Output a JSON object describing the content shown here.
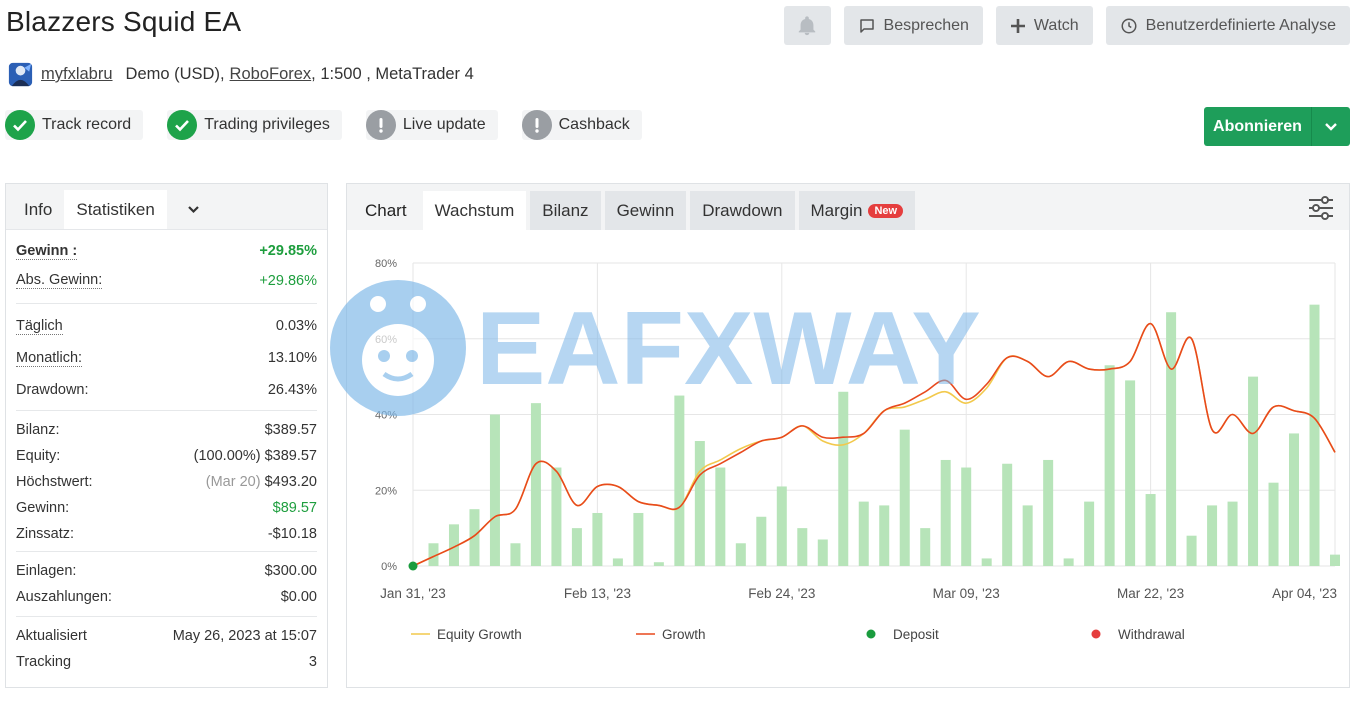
{
  "header": {
    "title": "Blazzers Squid EA",
    "discuss_label": "Besprechen",
    "watch_label": "Watch",
    "custom_analysis_label": "Benutzerdefinierte Analyse"
  },
  "account": {
    "user": "myfxlabru",
    "type": "Demo (USD),",
    "broker": "RoboForex",
    "leverage": ", 1:500 , MetaTrader 4"
  },
  "badges": [
    {
      "label": "Track record",
      "status": "ok"
    },
    {
      "label": "Trading privileges",
      "status": "ok"
    },
    {
      "label": "Live update",
      "status": "warn"
    },
    {
      "label": "Cashback",
      "status": "warn"
    }
  ],
  "subscribe_label": "Abonnieren",
  "left_tabs": {
    "info": "Info",
    "stats": "Statistiken"
  },
  "stats": {
    "gain_label": "Gewinn :",
    "gain_value": "+29.85%",
    "abs_gain_label": "Abs. Gewinn:",
    "abs_gain_value": "+29.86%",
    "daily_label": "Täglich",
    "daily_value": "0.03%",
    "monthly_label": "Monatlich:",
    "monthly_value": "13.10%",
    "drawdown_label": "Drawdown:",
    "drawdown_value": "26.43%",
    "balance_label": "Bilanz:",
    "balance_value": "$389.57",
    "equity_label": "Equity:",
    "equity_pct": "(100.00%)",
    "equity_value": "$389.57",
    "highest_label": "Höchstwert:",
    "highest_date": "(Mar 20)",
    "highest_value": "$493.20",
    "profit_label": "Gewinn:",
    "profit_value": "$89.57",
    "interest_label": "Zinssatz:",
    "interest_value": "-$10.18",
    "deposits_label": "Einlagen:",
    "deposits_value": "$300.00",
    "withdrawals_label": "Auszahlungen:",
    "withdrawals_value": "$0.00",
    "updated_label": "Aktualisiert",
    "updated_value": "May 26, 2023 at 15:07",
    "tracking_label": "Tracking",
    "tracking_value": "3"
  },
  "chart_tabs": {
    "chart": "Chart",
    "growth": "Wachstum",
    "balance": "Bilanz",
    "profit": "Gewinn",
    "drawdown": "Drawdown",
    "margin": "Margin",
    "new": "New"
  },
  "watermark": "EAFXWAY",
  "colors": {
    "equity": "#f2c94c",
    "growth": "#e8491d",
    "deposit": "#1a9c3e",
    "withdrawal": "#e53e3e",
    "bars": "#b7e4b9",
    "accent": "#1e9e5a"
  },
  "chart_data": {
    "type": "line",
    "y_ticks": [
      "0%",
      "20%",
      "40%",
      "60%",
      "80%"
    ],
    "ylim": [
      0,
      80
    ],
    "x_ticks": [
      "Jan 31, '23",
      "Feb 13, '23",
      "Feb 24, '23",
      "Mar 09, '23",
      "Mar 22, '23",
      "Apr 04, '23"
    ],
    "n_points": 46,
    "growth": [
      0,
      2.5,
      5,
      8,
      13,
      15,
      27,
      25,
      16,
      21,
      21,
      17,
      16,
      15.5,
      24,
      27,
      30,
      33,
      34,
      37,
      34,
      34,
      35,
      41,
      43,
      46,
      49,
      44,
      48,
      55,
      54,
      50,
      54,
      52,
      52,
      54,
      64,
      52,
      60,
      36,
      40,
      35,
      42,
      41,
      39,
      30
    ],
    "equity_growth": [
      0,
      2.5,
      5,
      8,
      13,
      15,
      27,
      25,
      16,
      21,
      21,
      17,
      16,
      15.5,
      25,
      28,
      31,
      33,
      34,
      37,
      33,
      32,
      35,
      41,
      42,
      44,
      46,
      43,
      47,
      55,
      54,
      50,
      54,
      52,
      52,
      54,
      64,
      52,
      60,
      36,
      40,
      35,
      42,
      41,
      39,
      30
    ],
    "bars": [
      0,
      6,
      11,
      15,
      40,
      6,
      43,
      26,
      10,
      14,
      2,
      14,
      1,
      45,
      33,
      26,
      6,
      13,
      21,
      10,
      7,
      46,
      17,
      16,
      36,
      10,
      28,
      26,
      2,
      27,
      16,
      28,
      2,
      17,
      53,
      49,
      19,
      67,
      8,
      16,
      17,
      50,
      22,
      35,
      69,
      3
    ],
    "deposit_points": [
      0
    ],
    "legend": [
      "Equity Growth",
      "Growth",
      "Deposit",
      "Withdrawal"
    ]
  }
}
